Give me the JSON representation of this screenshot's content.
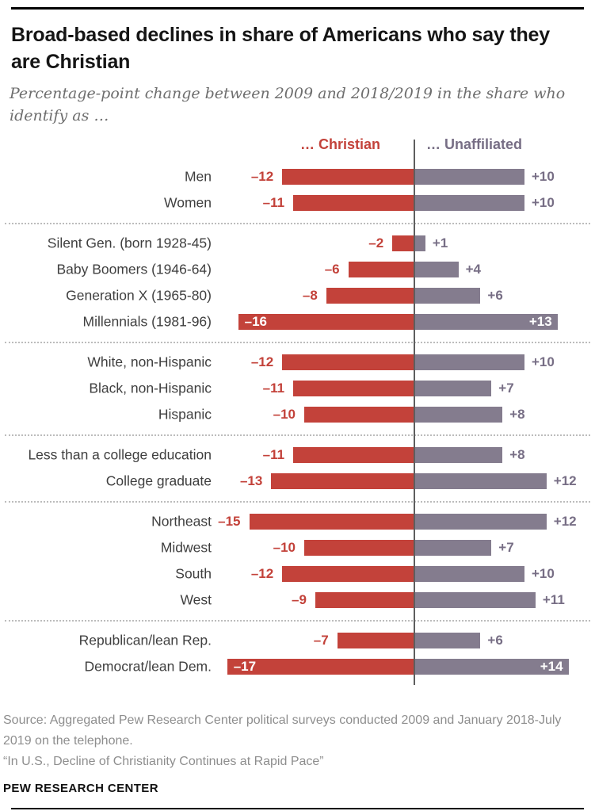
{
  "header": {
    "title": "Broad-based declines in share of Americans who say they are Christian",
    "subtitle": "Percentage-point change between 2009 and 2018/2019 in the share who identify as …"
  },
  "legend": {
    "christian": "… Christian",
    "unaffiliated": "… Unaffiliated"
  },
  "colors": {
    "christian": "#c3423a",
    "unaffiliated": "#847c8e"
  },
  "chart_data": {
    "type": "bar",
    "variant": "diverging-horizontal",
    "units": "percentage points",
    "series": [
      "Christian",
      "Unaffiliated"
    ],
    "axis_center": 0,
    "grid": "dotted section separators",
    "sections": [
      {
        "name": "gender",
        "rows": [
          {
            "label": "Men",
            "christian": -12,
            "unaffiliated": 10,
            "neg_label": "–12",
            "pos_label": "+10",
            "inside": false
          },
          {
            "label": "Women",
            "christian": -11,
            "unaffiliated": 10,
            "neg_label": "–11",
            "pos_label": "+10",
            "inside": false
          }
        ]
      },
      {
        "name": "generation",
        "rows": [
          {
            "label": "Silent Gen. (born 1928-45)",
            "christian": -2,
            "unaffiliated": 1,
            "neg_label": "–2",
            "pos_label": "+1",
            "inside": false
          },
          {
            "label": "Baby Boomers (1946-64)",
            "christian": -6,
            "unaffiliated": 4,
            "neg_label": "–6",
            "pos_label": "+4",
            "inside": false
          },
          {
            "label": "Generation X (1965-80)",
            "christian": -8,
            "unaffiliated": 6,
            "neg_label": "–8",
            "pos_label": "+6",
            "inside": false
          },
          {
            "label": "Millennials (1981-96)",
            "christian": -16,
            "unaffiliated": 13,
            "neg_label": "–16",
            "pos_label": "+13",
            "inside": true
          }
        ]
      },
      {
        "name": "race",
        "rows": [
          {
            "label": "White, non-Hispanic",
            "christian": -12,
            "unaffiliated": 10,
            "neg_label": "–12",
            "pos_label": "+10",
            "inside": false
          },
          {
            "label": "Black, non-Hispanic",
            "christian": -11,
            "unaffiliated": 7,
            "neg_label": "–11",
            "pos_label": "+7",
            "inside": false
          },
          {
            "label": "Hispanic",
            "christian": -10,
            "unaffiliated": 8,
            "neg_label": "–10",
            "pos_label": "+8",
            "inside": false
          }
        ]
      },
      {
        "name": "education",
        "rows": [
          {
            "label": "Less than a college education",
            "christian": -11,
            "unaffiliated": 8,
            "neg_label": "–11",
            "pos_label": "+8",
            "inside": false
          },
          {
            "label": "College graduate",
            "christian": -13,
            "unaffiliated": 12,
            "neg_label": "–13",
            "pos_label": "+12",
            "inside": false
          }
        ]
      },
      {
        "name": "region",
        "rows": [
          {
            "label": "Northeast",
            "christian": -15,
            "unaffiliated": 12,
            "neg_label": "–15",
            "pos_label": "+12",
            "inside": false
          },
          {
            "label": "Midwest",
            "christian": -10,
            "unaffiliated": 7,
            "neg_label": "–10",
            "pos_label": "+7",
            "inside": false
          },
          {
            "label": "South",
            "christian": -12,
            "unaffiliated": 10,
            "neg_label": "–12",
            "pos_label": "+10",
            "inside": false
          },
          {
            "label": "West",
            "christian": -9,
            "unaffiliated": 11,
            "neg_label": "–9",
            "pos_label": "+11",
            "inside": false
          }
        ]
      },
      {
        "name": "party",
        "rows": [
          {
            "label": "Republican/lean Rep.",
            "christian": -7,
            "unaffiliated": 6,
            "neg_label": "–7",
            "pos_label": "+6",
            "inside": false
          },
          {
            "label": "Democrat/lean Dem.",
            "christian": -17,
            "unaffiliated": 14,
            "neg_label": "–17",
            "pos_label": "+14",
            "inside": true
          }
        ]
      }
    ]
  },
  "footer": {
    "source_line_1": "Source: Aggregated Pew Research Center political surveys conducted 2009 and January 2018-July 2019 on the telephone.",
    "source_line_2": "“In U.S., Decline of Christianity Continues at Rapid Pace”",
    "brand": "PEW RESEARCH CENTER"
  }
}
